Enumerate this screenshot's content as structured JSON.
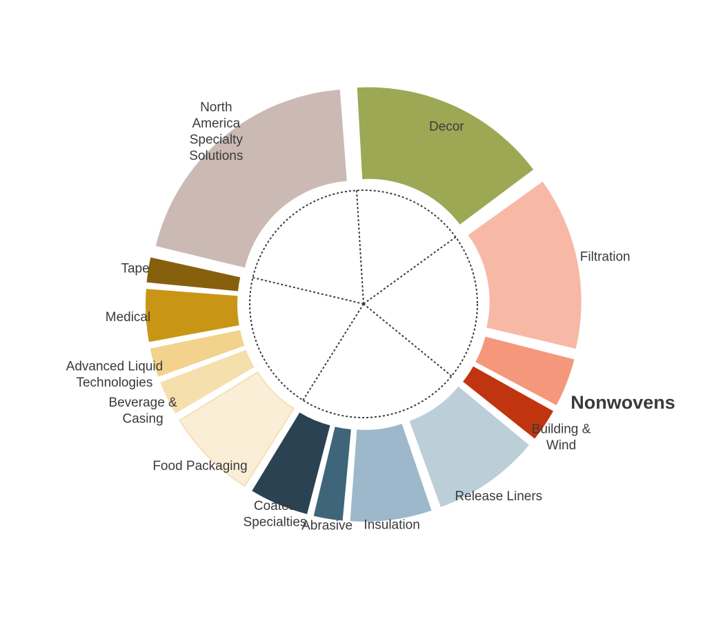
{
  "chart_data": {
    "type": "pie",
    "style": "exploded donut with dotted inner grouping",
    "slices": [
      {
        "label": [
          "Decor"
        ],
        "value": 15.5,
        "color": "#9da855"
      },
      {
        "label": [
          "Filtration"
        ],
        "value": 13.5,
        "color": "#f8b8a6"
      },
      {
        "label": [],
        "value": 4.0,
        "color": "#f5977b"
      },
      {
        "label": [
          "Building &",
          "Wind"
        ],
        "value": 2.8,
        "color": "#c0350f"
      },
      {
        "label": [
          "Release Liners"
        ],
        "value": 8.5,
        "color": "#bccfd8"
      },
      {
        "label": [
          "Insulation"
        ],
        "value": 6.5,
        "color": "#9db8ca"
      },
      {
        "label": [
          "Abrasive"
        ],
        "value": 2.5,
        "color": "#3f657b"
      },
      {
        "label": [
          "Coated",
          "Specialties"
        ],
        "value": 4.8,
        "color": "#2b4252"
      },
      {
        "label": [
          "Food Packaging"
        ],
        "value": 7.3,
        "color": "#faeed6",
        "stroke": "#f3e0b6"
      },
      {
        "label": [
          "Beverage &",
          "Casing"
        ],
        "value": 2.9,
        "color": "#f5e0ad"
      },
      {
        "label": [
          "Advanced Liquid",
          "Technologies"
        ],
        "value": 2.5,
        "color": "#f2d28c"
      },
      {
        "label": [
          "Medical"
        ],
        "value": 4.3,
        "color": "#c99514"
      },
      {
        "label": [
          "Tape"
        ],
        "value": 2.2,
        "color": "#87600e"
      },
      {
        "label": [
          "North",
          "America",
          "Specialty",
          "Solutions"
        ],
        "value": 19.7,
        "color": "#cbbab3"
      }
    ],
    "group_label": "Nonwovens"
  }
}
